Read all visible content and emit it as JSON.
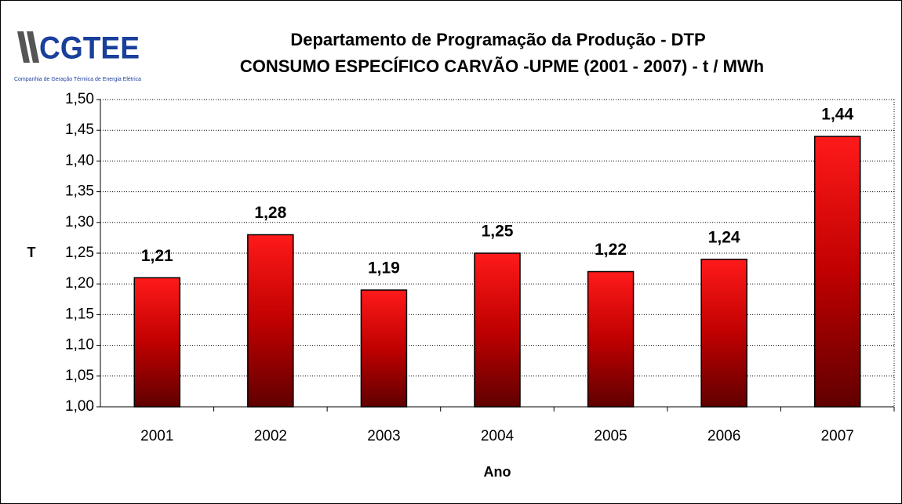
{
  "logo": {
    "name": "CGTEE",
    "subtitle": "Companhia de Geração Térmica de Energia Elétrica"
  },
  "chart_data": {
    "type": "bar",
    "title": "Departamento de Programação da Produção - DTP",
    "subtitle": "CONSUMO ESPECÍFICO CARVÃO -UPME (2001 - 2007) - t / MWh",
    "x_label": "Ano",
    "y_label": "T",
    "categories": [
      "2001",
      "2002",
      "2003",
      "2004",
      "2005",
      "2006",
      "2007"
    ],
    "values": [
      1.21,
      1.28,
      1.19,
      1.25,
      1.22,
      1.24,
      1.44
    ],
    "value_labels": [
      "1,21",
      "1,28",
      "1,19",
      "1,25",
      "1,22",
      "1,24",
      "1,44"
    ],
    "color": "#ff1a1a",
    "ylim": [
      1.0,
      1.5
    ],
    "yticks": [
      {
        "value": 1.0,
        "label": "1,00"
      },
      {
        "value": 1.05,
        "label": "1,05"
      },
      {
        "value": 1.1,
        "label": "1,10"
      },
      {
        "value": 1.15,
        "label": "1,15"
      },
      {
        "value": 1.2,
        "label": "1,20"
      },
      {
        "value": 1.25,
        "label": "1,25"
      },
      {
        "value": 1.3,
        "label": "1,30"
      },
      {
        "value": 1.35,
        "label": "1,35"
      },
      {
        "value": 1.4,
        "label": "1,40"
      },
      {
        "value": 1.45,
        "label": "1,45"
      },
      {
        "value": 1.5,
        "label": "1,50"
      }
    ],
    "grid": true
  }
}
